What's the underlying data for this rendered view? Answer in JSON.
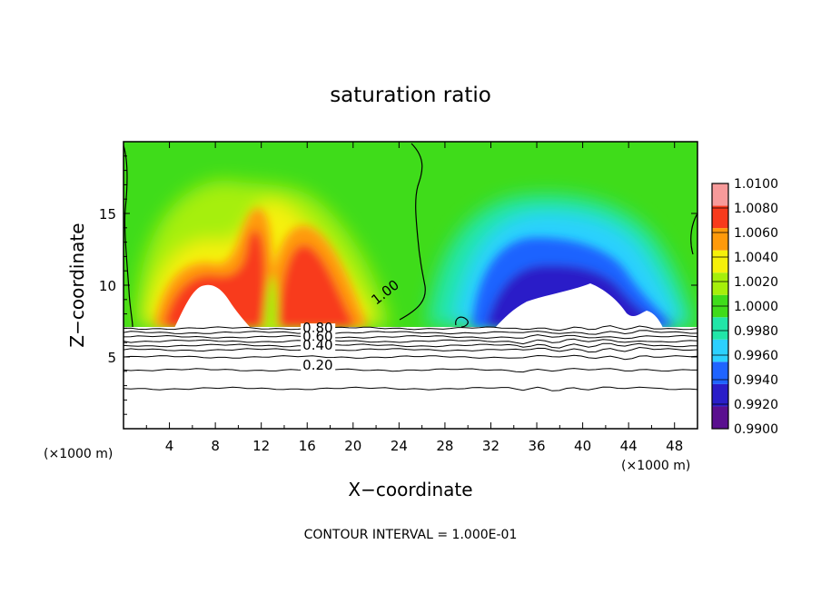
{
  "chart_data": {
    "type": "heatmap",
    "title": "saturation ratio",
    "xlabel": "X−coordinate",
    "ylabel": "Z−coordinate",
    "x_unit_left": "(×1000 m)",
    "x_unit_right": "(×1000 m)",
    "footer": "CONTOUR INTERVAL = 1.000E-01",
    "xlim": [
      0,
      50
    ],
    "ylim": [
      0,
      20
    ],
    "x_ticks": [
      4,
      8,
      12,
      16,
      20,
      24,
      28,
      32,
      36,
      40,
      44,
      48
    ],
    "y_ticks": [
      5,
      10,
      15
    ],
    "colorbar": {
      "levels": [
        "0.9900",
        "0.9920",
        "0.9940",
        "0.9960",
        "0.9980",
        "1.0000",
        "1.0020",
        "1.0040",
        "1.0060",
        "1.0080",
        "1.0100"
      ],
      "colors": [
        "#5a0f8f",
        "#2a1ec8",
        "#1f64ff",
        "#2cd0ff",
        "#21e6a8",
        "#3fdc1a",
        "#a6ef0a",
        "#f6f00a",
        "#ff9a0a",
        "#f83a1c",
        "#f79a9a"
      ]
    },
    "contour_labels": [
      {
        "text": "1.00",
        "x": 22.0,
        "z": 8.6
      },
      {
        "text": "0.80",
        "x": 15.6,
        "z": 6.7
      },
      {
        "text": "0.60",
        "x": 15.6,
        "z": 6.1
      },
      {
        "text": "0.40",
        "x": 15.6,
        "z": 5.5
      },
      {
        "text": "0.20",
        "x": 15.6,
        "z": 4.1
      }
    ],
    "contour_lines_z": [
      2.8,
      4.1,
      5.0,
      5.5,
      5.8,
      6.1,
      6.4,
      6.7,
      7.0
    ],
    "cloud_top_z": 7.1
  }
}
